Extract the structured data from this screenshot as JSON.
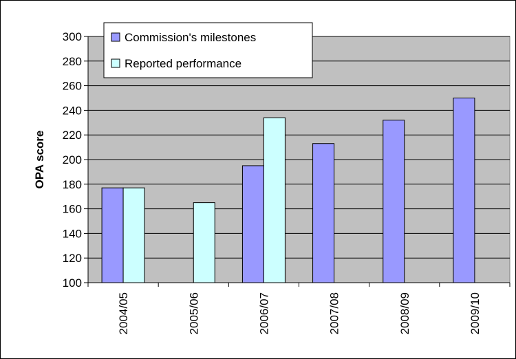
{
  "chart_data": {
    "type": "bar",
    "categories": [
      "2004/05",
      "2005/06",
      "2006/07",
      "2007/08",
      "2008/09",
      "2009/10"
    ],
    "series": [
      {
        "name": "Commission's milestones",
        "values": [
          177,
          null,
          195,
          213,
          232,
          250
        ],
        "color": "#9999ff"
      },
      {
        "name": "Reported performance",
        "values": [
          177,
          165,
          234,
          null,
          null,
          null
        ],
        "color": "#ccffff"
      }
    ],
    "title": "",
    "xlabel": "",
    "ylabel": "OPA score",
    "ylim": [
      100,
      300
    ],
    "yticks": [
      100,
      120,
      140,
      160,
      180,
      200,
      220,
      240,
      260,
      280,
      300
    ],
    "grid": true,
    "legend": "top-left",
    "plot_background": "#c0c0c0"
  }
}
